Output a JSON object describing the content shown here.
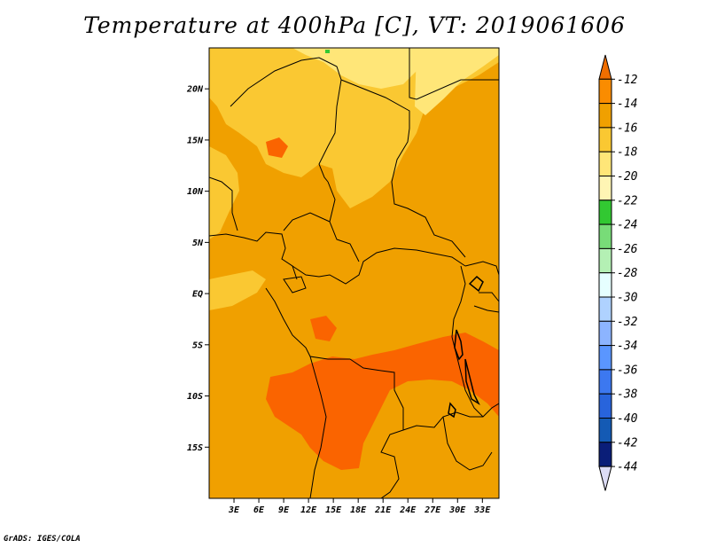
{
  "title": "Temperature at 400hPa [C], VT: 2019061606",
  "credit": "GrADS: IGES/COLA",
  "map": {
    "lon_range": [
      0,
      35
    ],
    "lat_range": [
      -20,
      24
    ],
    "lat_labels": [
      "20N",
      "15N",
      "10N",
      "5N",
      "EQ",
      "5S",
      "10S",
      "15S"
    ],
    "lon_labels": [
      "3E",
      "6E",
      "9E",
      "12E",
      "15E",
      "18E",
      "21E",
      "24E",
      "27E",
      "30E",
      "33E"
    ],
    "fill_colors": {
      "base": "#f0a000",
      "warm": "#fa6400",
      "cool": "#fac832",
      "coolest": "#ffe678",
      "green": "#32c832"
    }
  },
  "colorbar": {
    "labels": [
      "-12",
      "-14",
      "-16",
      "-18",
      "-20",
      "-22",
      "-24",
      "-26",
      "-28",
      "-30",
      "-32",
      "-34",
      "-36",
      "-38",
      "-40",
      "-42",
      "-44"
    ],
    "colors": [
      "#f06e00",
      "#fa8c00",
      "#f0a000",
      "#fac832",
      "#ffe678",
      "#fff5b4",
      "#32c832",
      "#78dc78",
      "#b4f0b4",
      "#e6ffff",
      "#afd2ff",
      "#8cb4ff",
      "#5a96ff",
      "#3c78f0",
      "#2864dc",
      "#145ab4",
      "#0a1e78",
      "#dcdcf5"
    ]
  }
}
